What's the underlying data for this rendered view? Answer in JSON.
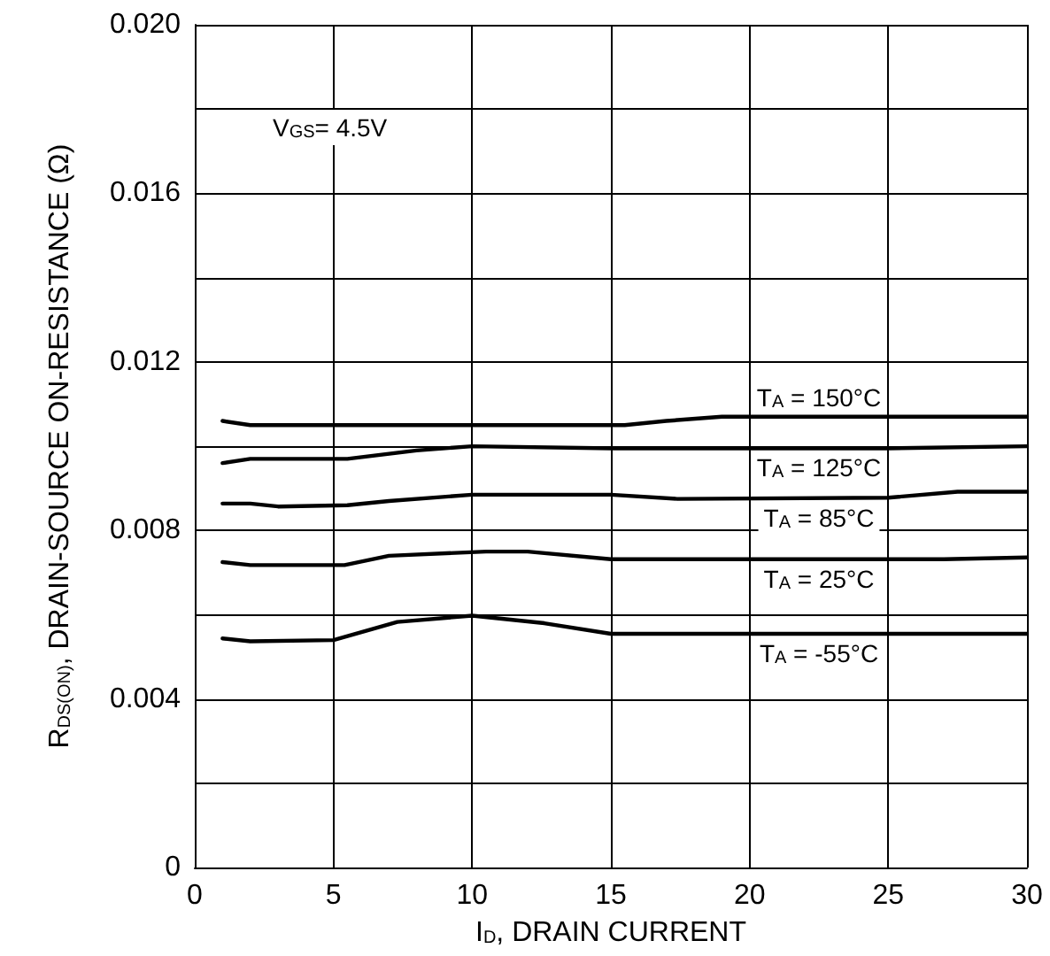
{
  "chart_data": {
    "type": "line",
    "xlabel": "I$_{D}$, DRAIN CURRENT",
    "ylabel": "R$_{DS(ON)}$, DRAIN-SOURCE ON-RESISTANCE (Ω)",
    "annotations": [
      "V$_{GS}$= 4.5V"
    ],
    "xlim": [
      0,
      30
    ],
    "xticks": [
      0,
      5,
      10,
      15,
      20,
      25,
      30
    ],
    "ylim": [
      0,
      0.02
    ],
    "yticks": [
      0,
      {
        "value": 0.002,
        "label": null
      },
      0.004,
      {
        "value": 0.006,
        "label": null
      },
      0.008,
      {
        "value": 0.01,
        "label": null
      },
      0.012,
      {
        "value": 0.014,
        "label": null
      },
      0.016,
      {
        "value": 0.018,
        "label": null
      },
      {
        "value": 0.02,
        "label": "0.020"
      }
    ],
    "grid": true,
    "legend": false,
    "marker": "none",
    "line_style": "solid",
    "series": [
      {
        "name": "T$_{A}$ = 150°C",
        "color": "#000000",
        "x": [
          1,
          2,
          5,
          10,
          15.5,
          17,
          19,
          25,
          30
        ],
        "values": [
          0.0106,
          0.0105,
          0.0105,
          0.0105,
          0.0105,
          0.0106,
          0.0107,
          0.0107,
          0.0107
        ]
      },
      {
        "name": "T$_{A}$ = 125°C",
        "color": "#000000",
        "x": [
          1,
          2,
          5.5,
          8,
          10,
          15,
          20,
          25,
          30
        ],
        "values": [
          0.0096,
          0.0097,
          0.0097,
          0.0099,
          0.01,
          0.00995,
          0.00995,
          0.00995,
          0.01
        ]
      },
      {
        "name": "T$_{A}$ = 85°C",
        "color": "#000000",
        "x": [
          1,
          2,
          3,
          5.5,
          7,
          10,
          15,
          17.4,
          25,
          27.5,
          30
        ],
        "values": [
          0.00864,
          0.00864,
          0.00857,
          0.0086,
          0.0087,
          0.00885,
          0.00885,
          0.00875,
          0.00878,
          0.00892,
          0.00892
        ]
      },
      {
        "name": "T$_{A}$ = 25°C",
        "color": "#000000",
        "x": [
          1,
          2,
          5.4,
          7,
          10.5,
          12,
          15,
          20,
          27,
          30
        ],
        "values": [
          0.00725,
          0.00718,
          0.00718,
          0.0074,
          0.0075,
          0.0075,
          0.00732,
          0.00732,
          0.00732,
          0.00736
        ]
      },
      {
        "name": "T$_{A}$ = -55°C",
        "color": "#000000",
        "x": [
          1,
          2,
          5,
          7.3,
          10,
          12.6,
          15,
          20,
          30
        ],
        "values": [
          0.00544,
          0.00537,
          0.0054,
          0.00583,
          0.00598,
          0.0058,
          0.00555,
          0.00555,
          0.00555
        ]
      }
    ]
  }
}
